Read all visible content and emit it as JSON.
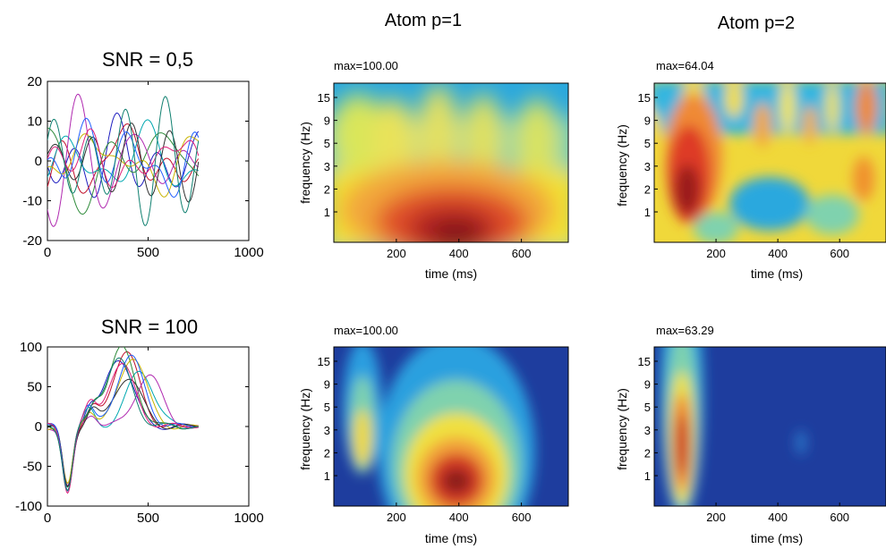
{
  "columns": {
    "col2_title": "Atom p=1",
    "col3_title": "Atom p=2"
  },
  "rows": {
    "row1_title": "SNR = 0,5",
    "row2_title": "SNR = 100"
  },
  "chart_data": [
    {
      "id": "signal-snr-05",
      "type": "line",
      "title": "SNR = 0,5",
      "xlabel": "",
      "ylabel": "",
      "xlim": [
        0,
        1000
      ],
      "ylim": [
        -20,
        20
      ],
      "xticks": [
        0,
        500,
        1000
      ],
      "yticks": [
        20,
        10,
        0,
        -10,
        -20
      ],
      "xtick_labels": [
        "0",
        "500",
        "1000"
      ],
      "ytick_labels": [
        "20",
        "10",
        "0",
        "-10",
        "-20"
      ],
      "trial_count": 10,
      "x_extent": [
        0,
        750
      ],
      "series_colors": [
        "#1f1fc0",
        "#c0102a",
        "#00a8b0",
        "#2e8b3a",
        "#b02ab0",
        "#c8b400",
        "#303030",
        "#1f5fff",
        "#e0207a",
        "#108070"
      ]
    },
    {
      "id": "tf-snr05-p1",
      "type": "heatmap",
      "max_label": "max=100.00",
      "xlabel": "time (ms)",
      "ylabel": "frequency (Hz)",
      "xticks": [
        200,
        400,
        600
      ],
      "xtick_labels": [
        "200",
        "400",
        "600"
      ],
      "ytick_labels": [
        "15",
        "9",
        "5",
        "3",
        "2",
        "1"
      ],
      "xlim": [
        0,
        750
      ]
    },
    {
      "id": "tf-snr05-p2",
      "type": "heatmap",
      "max_label": "max=64.04",
      "xlabel": "time (ms)",
      "ylabel": "frequency (Hz)",
      "xticks": [
        200,
        400,
        600
      ],
      "xtick_labels": [
        "200",
        "400",
        "600"
      ],
      "ytick_labels": [
        "15",
        "9",
        "5",
        "3",
        "2",
        "1"
      ],
      "xlim": [
        0,
        750
      ]
    },
    {
      "id": "signal-snr-100",
      "type": "line",
      "title": "SNR = 100",
      "xlabel": "",
      "ylabel": "",
      "xlim": [
        0,
        1000
      ],
      "ylim": [
        -100,
        100
      ],
      "xticks": [
        0,
        500,
        1000
      ],
      "yticks": [
        100,
        50,
        0,
        -50,
        -100
      ],
      "xtick_labels": [
        "0",
        "500",
        "1000"
      ],
      "ytick_labels": [
        "100",
        "50",
        "0",
        "-50",
        "-100"
      ],
      "trial_count": 10,
      "trough": {
        "x": 100,
        "y": -78
      },
      "peak_range": {
        "x": [
          300,
          520
        ],
        "y": [
          55,
          98
        ]
      },
      "x_extent": [
        0,
        750
      ],
      "series_colors": [
        "#1f1fc0",
        "#c0102a",
        "#00a8b0",
        "#2e8b3a",
        "#b02ab0",
        "#c8b400",
        "#303030",
        "#1f5fff",
        "#e0207a",
        "#108070"
      ]
    },
    {
      "id": "tf-snr100-p1",
      "type": "heatmap",
      "max_label": "max=100.00",
      "xlabel": "time (ms)",
      "ylabel": "frequency (Hz)",
      "xticks": [
        200,
        400,
        600
      ],
      "xtick_labels": [
        "200",
        "400",
        "600"
      ],
      "ytick_labels": [
        "15",
        "9",
        "5",
        "3",
        "2",
        "1"
      ],
      "xlim": [
        0,
        750
      ]
    },
    {
      "id": "tf-snr100-p2",
      "type": "heatmap",
      "max_label": "max=63.29",
      "xlabel": "time (ms)",
      "ylabel": "frequency (Hz)",
      "xticks": [
        200,
        400,
        600
      ],
      "xtick_labels": [
        "200",
        "400",
        "600"
      ],
      "ytick_labels": [
        "15",
        "9",
        "5",
        "3",
        "2",
        "1"
      ],
      "xlim": [
        0,
        750
      ]
    }
  ]
}
